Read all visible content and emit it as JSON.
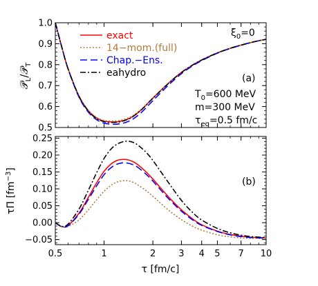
{
  "chart_data": [
    {
      "type": "line",
      "panel_label": "(a)",
      "ylabel": "𝒫L/𝒫T",
      "ylabel_main": "𝒫",
      "ylabel_sub1": "L",
      "ylabel_mid": "/𝒫",
      "ylabel_sub2": "T",
      "xscale": "log",
      "xlim": [
        0.5,
        10
      ],
      "ylim": [
        0.5,
        1.0
      ],
      "yticks": [
        "0.5",
        "0.6",
        "0.7",
        "0.8",
        "0.9",
        "1.0"
      ],
      "yticks_values": [
        0.5,
        0.6,
        0.7,
        0.8,
        0.9,
        1.0
      ],
      "annotation_xi": "ξ0=0",
      "annotation_xi_main": "ξ",
      "annotation_xi_sub": "0",
      "annotation_xi_rest": "=0",
      "params": [
        {
          "main": "T",
          "sub": "0",
          "rest": "=600 MeV"
        },
        {
          "main": "m=300 MeV",
          "sub": "",
          "rest": ""
        },
        {
          "main": "τ",
          "sub": "eq",
          "rest": "=0.5 fm/c"
        }
      ],
      "legend": {
        "position": "top-left"
      },
      "series": [
        {
          "name": "exact",
          "color": "#ff0000",
          "dash": "solid",
          "x": [
            0.5,
            0.55,
            0.6,
            0.7,
            0.8,
            0.9,
            1.0,
            1.1,
            1.2,
            1.3,
            1.4,
            1.5,
            1.7,
            2.0,
            2.5,
            3.0,
            3.5,
            4.0,
            5.0,
            6.0,
            7.0,
            8.0,
            9.0,
            10.0
          ],
          "y": [
            1.0,
            0.88,
            0.78,
            0.65,
            0.58,
            0.545,
            0.53,
            0.527,
            0.527,
            0.532,
            0.54,
            0.552,
            0.585,
            0.64,
            0.712,
            0.763,
            0.797,
            0.822,
            0.856,
            0.878,
            0.893,
            0.905,
            0.914,
            0.921
          ]
        },
        {
          "name": "14−mom.(full)",
          "color": "#b37a3a",
          "dash": "dotted",
          "x": [
            0.5,
            0.55,
            0.6,
            0.7,
            0.8,
            0.9,
            1.0,
            1.1,
            1.2,
            1.3,
            1.4,
            1.5,
            1.7,
            2.0,
            2.5,
            3.0,
            3.5,
            4.0,
            5.0,
            6.0,
            7.0,
            8.0,
            9.0,
            10.0
          ],
          "y": [
            1.0,
            0.88,
            0.78,
            0.652,
            0.582,
            0.548,
            0.534,
            0.531,
            0.532,
            0.537,
            0.545,
            0.556,
            0.588,
            0.642,
            0.713,
            0.764,
            0.798,
            0.823,
            0.857,
            0.878,
            0.894,
            0.905,
            0.914,
            0.921
          ]
        },
        {
          "name": "Chap.−Ens.",
          "color": "#0000ff",
          "dash": "dashed",
          "x": [
            0.5,
            0.55,
            0.6,
            0.7,
            0.8,
            0.9,
            1.0,
            1.1,
            1.2,
            1.3,
            1.4,
            1.5,
            1.7,
            2.0,
            2.5,
            3.0,
            3.5,
            4.0,
            5.0,
            6.0,
            7.0,
            8.0,
            9.0,
            10.0
          ],
          "y": [
            1.0,
            0.88,
            0.778,
            0.645,
            0.573,
            0.537,
            0.521,
            0.516,
            0.516,
            0.52,
            0.528,
            0.539,
            0.572,
            0.628,
            0.703,
            0.757,
            0.793,
            0.819,
            0.855,
            0.877,
            0.893,
            0.905,
            0.914,
            0.921
          ]
        },
        {
          "name": "eahydro",
          "color": "#000000",
          "dash": "dashdot",
          "x": [
            0.5,
            0.55,
            0.6,
            0.7,
            0.8,
            0.9,
            1.0,
            1.1,
            1.2,
            1.3,
            1.4,
            1.5,
            1.7,
            2.0,
            2.5,
            3.0,
            3.5,
            4.0,
            5.0,
            6.0,
            7.0,
            8.0,
            9.0,
            10.0
          ],
          "y": [
            1.0,
            0.88,
            0.779,
            0.648,
            0.578,
            0.543,
            0.528,
            0.524,
            0.525,
            0.53,
            0.539,
            0.551,
            0.584,
            0.639,
            0.711,
            0.762,
            0.797,
            0.822,
            0.856,
            0.878,
            0.893,
            0.905,
            0.914,
            0.921
          ]
        }
      ]
    },
    {
      "type": "line",
      "panel_label": "(b)",
      "ylabel": "τΠ [fm⁻³]",
      "ylabel_main": "τΠ [fm",
      "ylabel_sup": "−3",
      "ylabel_close": "]",
      "xlabel": "τ [fm/c]",
      "xlabel_tau": "τ",
      "xlabel_rest": " [fm/c]",
      "xscale": "log",
      "xlim": [
        0.5,
        10
      ],
      "ylim": [
        -0.065,
        0.255
      ],
      "xticks": [
        "0.5",
        "1",
        "2",
        "3",
        "4",
        "5",
        "7",
        "10"
      ],
      "xticks_values": [
        0.5,
        1,
        2,
        3,
        4,
        5,
        7,
        10
      ],
      "yticks": [
        "−0.05",
        "0.00",
        "0.05",
        "0.10",
        "0.15",
        "0.20",
        "0.25"
      ],
      "yticks_values": [
        -0.05,
        0.0,
        0.05,
        0.1,
        0.15,
        0.2,
        0.25
      ],
      "series": [
        {
          "name": "exact",
          "color": "#ff0000",
          "dash": "solid",
          "x": [
            0.5,
            0.55,
            0.6,
            0.7,
            0.8,
            0.9,
            1.0,
            1.1,
            1.2,
            1.3,
            1.4,
            1.5,
            1.6,
            1.8,
            2.0,
            2.5,
            3.0,
            3.5,
            4.0,
            5.0,
            6.0,
            7.0,
            8.0,
            10.0
          ],
          "y": [
            0.0,
            -0.012,
            -0.008,
            0.028,
            0.075,
            0.118,
            0.152,
            0.173,
            0.184,
            0.187,
            0.186,
            0.181,
            0.173,
            0.152,
            0.129,
            0.076,
            0.038,
            0.012,
            -0.006,
            -0.025,
            -0.035,
            -0.04,
            -0.043,
            -0.045
          ]
        },
        {
          "name": "14−mom.(full)",
          "color": "#b37a3a",
          "dash": "dotted",
          "x": [
            0.5,
            0.55,
            0.6,
            0.7,
            0.8,
            0.9,
            1.0,
            1.1,
            1.2,
            1.3,
            1.4,
            1.5,
            1.6,
            1.8,
            2.0,
            2.5,
            3.0,
            3.5,
            4.0,
            5.0,
            6.0,
            7.0,
            8.0,
            10.0
          ],
          "y": [
            0.0,
            -0.012,
            -0.011,
            0.008,
            0.038,
            0.068,
            0.093,
            0.11,
            0.12,
            0.124,
            0.124,
            0.12,
            0.113,
            0.096,
            0.078,
            0.037,
            0.009,
            -0.01,
            -0.022,
            -0.036,
            -0.042,
            -0.045,
            -0.046,
            -0.047
          ]
        },
        {
          "name": "Chap.−Ens.",
          "color": "#0000ff",
          "dash": "dashed",
          "x": [
            0.5,
            0.55,
            0.6,
            0.7,
            0.8,
            0.9,
            1.0,
            1.1,
            1.2,
            1.3,
            1.4,
            1.5,
            1.6,
            1.8,
            2.0,
            2.5,
            3.0,
            3.5,
            4.0,
            5.0,
            6.0,
            7.0,
            8.0,
            10.0
          ],
          "y": [
            0.0,
            -0.012,
            -0.009,
            0.025,
            0.069,
            0.109,
            0.142,
            0.162,
            0.173,
            0.177,
            0.176,
            0.172,
            0.165,
            0.145,
            0.123,
            0.071,
            0.034,
            0.009,
            -0.008,
            -0.026,
            -0.036,
            -0.041,
            -0.044,
            -0.046
          ]
        },
        {
          "name": "eahydro",
          "color": "#000000",
          "dash": "dashdot",
          "x": [
            0.5,
            0.55,
            0.6,
            0.7,
            0.8,
            0.9,
            1.0,
            1.1,
            1.2,
            1.3,
            1.4,
            1.5,
            1.6,
            1.8,
            2.0,
            2.5,
            3.0,
            3.5,
            4.0,
            5.0,
            6.0,
            7.0,
            8.0,
            10.0
          ],
          "y": [
            0.0,
            -0.011,
            -0.004,
            0.04,
            0.096,
            0.148,
            0.19,
            0.217,
            0.232,
            0.239,
            0.241,
            0.238,
            0.231,
            0.21,
            0.184,
            0.118,
            0.066,
            0.031,
            0.008,
            -0.017,
            -0.03,
            -0.037,
            -0.041,
            -0.044
          ]
        }
      ]
    }
  ]
}
